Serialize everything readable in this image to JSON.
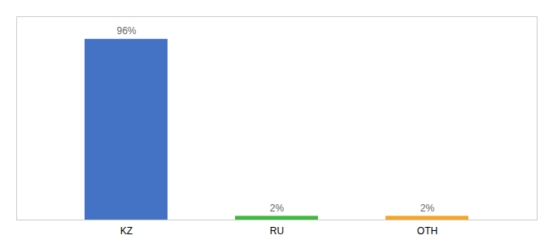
{
  "chart_data": {
    "type": "bar",
    "categories": [
      "KZ",
      "RU",
      "OTH"
    ],
    "values": [
      96,
      2,
      2
    ],
    "value_labels": [
      "96%",
      "2%",
      "2%"
    ],
    "colors": [
      "#4472c4",
      "#3dba3d",
      "#f5a623"
    ],
    "data_labels": true,
    "ylim": [
      0,
      108
    ],
    "tick_labels": "x",
    "grid": false
  }
}
